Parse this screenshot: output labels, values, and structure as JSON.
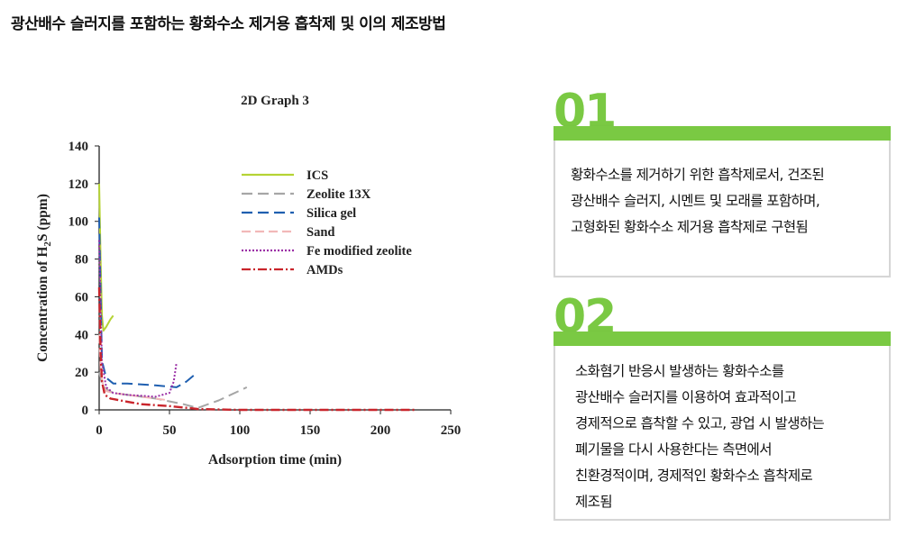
{
  "page": {
    "title": "광산배수 슬러지를 포함하는 황화수소 제거용 흡착제 및 이의 제조방법"
  },
  "cards": [
    {
      "number": "01",
      "lines": [
        "황화수소를 제거하기 위한 흡착제로서, 건조된",
        "광산배수 슬러지, 시멘트 및 모래를  포함하며,",
        "고형화된 황화수소 제거용 흡착제로 구현됨"
      ]
    },
    {
      "number": "02",
      "lines": [
        "소화혐기 반응시 발생하는 황화수소를",
        "광산배수 슬러지를 이용하여 효과적이고",
        "경제적으로 흡착할 수 있고, 광업 시 발생하는",
        "폐기물을 다시 사용한다는 측면에서",
        "친환경적이며, 경제적인 황화수소 흡착제로",
        "제조됨"
      ]
    }
  ],
  "colors": {
    "accent": "#7ac943",
    "card_border": "#d6d6d6"
  },
  "chart_data": {
    "type": "line",
    "title": "2D Graph 3",
    "xlabel": "Adsorption time (min)",
    "ylabel": "Concentration of H2S (ppm)",
    "xlim": [
      0,
      250
    ],
    "ylim": [
      0,
      140
    ],
    "x_ticks": [
      "0",
      "50",
      "100",
      "150",
      "200",
      "250"
    ],
    "y_ticks": [
      "0",
      "20",
      "40",
      "60",
      "80",
      "100",
      "120",
      "140"
    ],
    "legend_position": "top-right",
    "grid": false,
    "series": [
      {
        "name": "ICS",
        "color": "#b5d334",
        "dash": "solid",
        "x": [
          0,
          1,
          2,
          3,
          5,
          8,
          10
        ],
        "y": [
          120,
          80,
          50,
          42,
          44,
          48,
          50
        ]
      },
      {
        "name": "Zeolite 13X",
        "color": "#a6a6a6",
        "dash": "12,6",
        "x": [
          0,
          2,
          5,
          10,
          20,
          40,
          60,
          70,
          85,
          105
        ],
        "y": [
          20,
          14,
          11,
          9,
          8,
          6,
          3,
          1,
          5,
          12
        ]
      },
      {
        "name": "Silica gel",
        "color": "#1f5fb0",
        "dash": "12,6",
        "x": [
          0,
          2,
          5,
          10,
          20,
          40,
          55,
          62,
          70
        ],
        "y": [
          102,
          26,
          17,
          14,
          14,
          13,
          12,
          15,
          20
        ]
      },
      {
        "name": "Sand",
        "color": "#f2b8b8",
        "dash": "10,5",
        "x": [
          0,
          1,
          3,
          5,
          10,
          20,
          40,
          50
        ],
        "y": [
          40,
          20,
          12,
          10,
          9,
          8,
          6,
          5
        ]
      },
      {
        "name": "Fe modified zeolite",
        "color": "#9b2fa6",
        "dash": "2,2",
        "x": [
          0,
          1,
          2,
          5,
          10,
          20,
          40,
          50,
          53,
          55
        ],
        "y": [
          90,
          55,
          25,
          12,
          9,
          8,
          7,
          9,
          15,
          25
        ]
      },
      {
        "name": "AMDs",
        "color": "#c9252c",
        "dash": "10,3,2,3",
        "x": [
          0,
          1,
          2,
          4,
          8,
          15,
          30,
          50,
          70,
          100,
          150,
          225
        ],
        "y": [
          65,
          30,
          15,
          8,
          6,
          5,
          3,
          2,
          0.5,
          0,
          0,
          0
        ]
      }
    ]
  }
}
